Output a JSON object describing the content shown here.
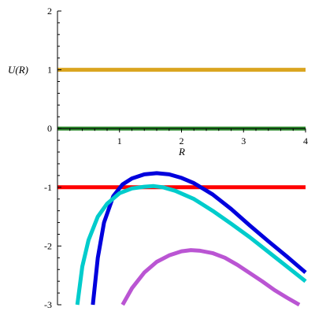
{
  "chart_data": {
    "type": "line",
    "xlabel": "R",
    "ylabel": "U(R)",
    "xlim": [
      0,
      4
    ],
    "ylim": [
      -3,
      2
    ],
    "x_ticks": [
      1,
      2,
      3,
      4
    ],
    "y_ticks": [
      -3,
      -2,
      -1,
      0,
      1,
      2
    ],
    "grid": false,
    "legend": "none",
    "series": [
      {
        "color": "#DAA520",
        "x": [
          0,
          4
        ],
        "y": [
          1,
          1
        ]
      },
      {
        "color": "#2E8B2E",
        "x": [
          0,
          4
        ],
        "y": [
          0,
          0
        ]
      },
      {
        "color": "#FF0000",
        "x": [
          0,
          4
        ],
        "y": [
          -1,
          -1
        ]
      },
      {
        "color": "#0000DD",
        "x": [
          0.57,
          0.65,
          0.75,
          0.9,
          1.05,
          1.2,
          1.4,
          1.6,
          1.8,
          2.0,
          2.2,
          2.5,
          2.8,
          3.1,
          3.4,
          3.7,
          4.0
        ],
        "y": [
          -3.0,
          -2.2,
          -1.6,
          -1.15,
          -0.95,
          -0.85,
          -0.78,
          -0.76,
          -0.78,
          -0.84,
          -0.93,
          -1.12,
          -1.37,
          -1.65,
          -1.92,
          -2.18,
          -2.45
        ]
      },
      {
        "color": "#00CCCC",
        "x": [
          0.32,
          0.4,
          0.5,
          0.65,
          0.8,
          1.0,
          1.2,
          1.4,
          1.55,
          1.7,
          1.9,
          2.2,
          2.5,
          2.8,
          3.1,
          3.4,
          3.7,
          4.0
        ],
        "y": [
          -3.0,
          -2.35,
          -1.9,
          -1.5,
          -1.28,
          -1.1,
          -1.02,
          -0.99,
          -0.98,
          -1.0,
          -1.06,
          -1.2,
          -1.4,
          -1.62,
          -1.85,
          -2.1,
          -2.35,
          -2.6
        ]
      },
      {
        "color": "#BA55D3",
        "x": [
          1.05,
          1.2,
          1.4,
          1.6,
          1.8,
          2.0,
          2.15,
          2.3,
          2.5,
          2.7,
          2.9,
          3.1,
          3.3,
          3.5,
          3.7,
          3.9
        ],
        "y": [
          -3.0,
          -2.72,
          -2.45,
          -2.27,
          -2.16,
          -2.09,
          -2.07,
          -2.08,
          -2.12,
          -2.2,
          -2.32,
          -2.46,
          -2.6,
          -2.75,
          -2.88,
          -3.0
        ]
      }
    ]
  }
}
